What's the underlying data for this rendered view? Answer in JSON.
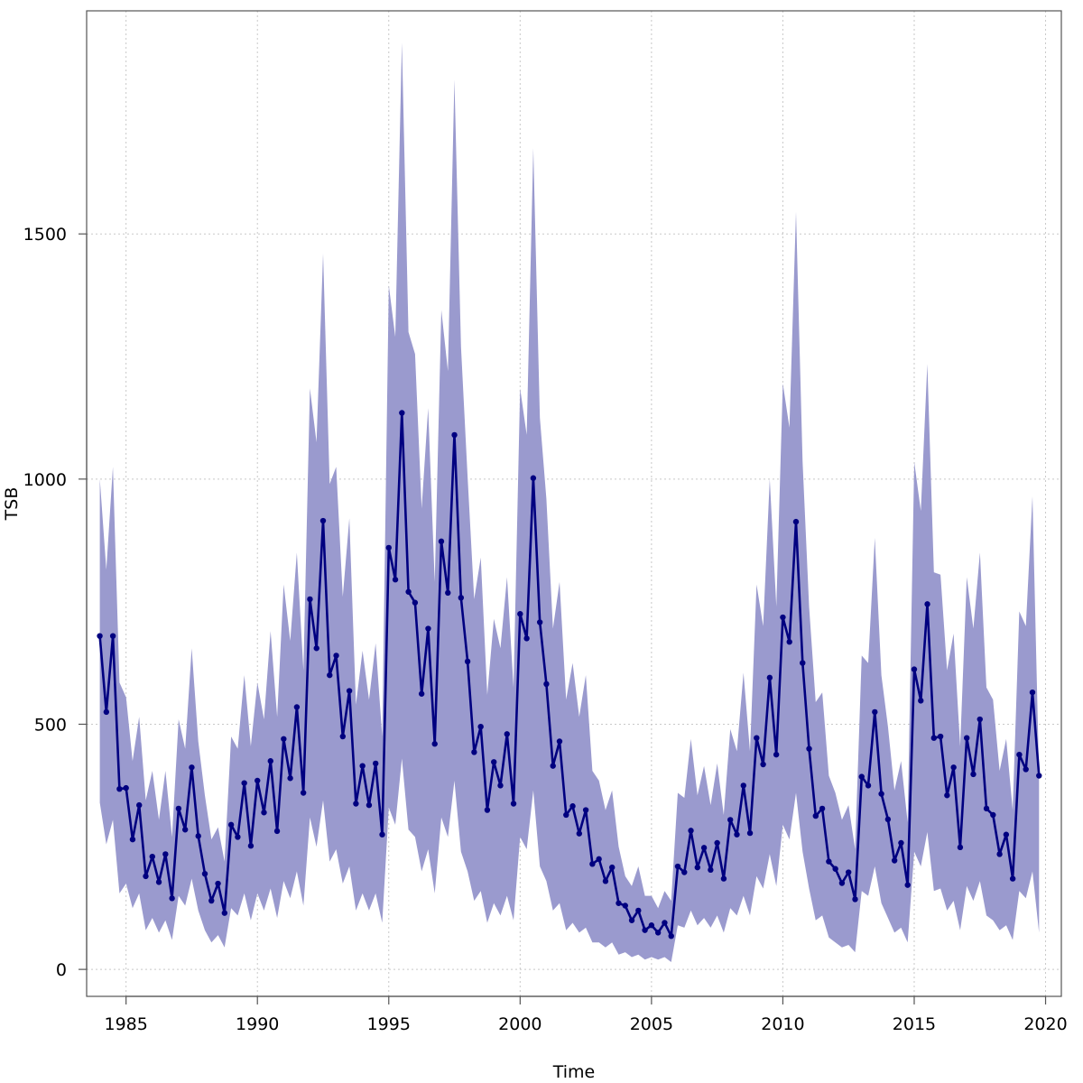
{
  "chart_data": {
    "type": "line",
    "xlabel": "Time",
    "ylabel": "TSB",
    "xlim": [
      1983.5,
      2020.6
    ],
    "ylim": [
      -55,
      1955
    ],
    "x_ticks": [
      1985,
      1990,
      1995,
      2000,
      2005,
      2010,
      2015,
      2020
    ],
    "y_ticks": [
      0,
      500,
      1000,
      1500
    ],
    "grid": true,
    "colors": {
      "line": "#000080",
      "band": "#9a9ace",
      "grid": "#c8c8c8"
    },
    "series": [
      {
        "x": [
          1984.0,
          1984.25,
          1984.5,
          1984.75,
          1985.0,
          1985.25,
          1985.5,
          1985.75,
          1986.0,
          1986.25,
          1986.5,
          1986.75,
          1987.0,
          1987.25,
          1987.5,
          1987.75,
          1988.0,
          1988.25,
          1988.5,
          1988.75,
          1989.0,
          1989.25,
          1989.5,
          1989.75,
          1990.0,
          1990.25,
          1990.5,
          1990.75,
          1991.0,
          1991.25,
          1991.5,
          1991.75,
          1992.0,
          1992.25,
          1992.5,
          1992.75,
          1993.0,
          1993.25,
          1993.5,
          1993.75,
          1994.0,
          1994.25,
          1994.5,
          1994.75,
          1995.0,
          1995.25,
          1995.5,
          1995.75,
          1996.0,
          1996.25,
          1996.5,
          1996.75,
          1997.0,
          1997.25,
          1997.5,
          1997.75,
          1998.0,
          1998.25,
          1998.5,
          1998.75,
          1999.0,
          1999.25,
          1999.5,
          1999.75,
          2000.0,
          2000.25,
          2000.5,
          2000.75,
          2001.0,
          2001.25,
          2001.5,
          2001.75,
          2002.0,
          2002.25,
          2002.5,
          2002.75,
          2003.0,
          2003.25,
          2003.5,
          2003.75,
          2004.0,
          2004.25,
          2004.5,
          2004.75,
          2005.0,
          2005.25,
          2005.5,
          2005.75,
          2006.0,
          2006.25,
          2006.5,
          2006.75,
          2007.0,
          2007.25,
          2007.5,
          2007.75,
          2008.0,
          2008.25,
          2008.5,
          2008.75,
          2009.0,
          2009.25,
          2009.5,
          2009.75,
          2010.0,
          2010.25,
          2010.5,
          2010.75,
          2011.0,
          2011.25,
          2011.5,
          2011.75,
          2012.0,
          2012.25,
          2012.5,
          2012.75,
          2013.0,
          2013.25,
          2013.5,
          2013.75,
          2014.0,
          2014.25,
          2014.5,
          2014.75,
          2015.0,
          2015.25,
          2015.5,
          2015.75,
          2016.0,
          2016.25,
          2016.5,
          2016.75,
          2017.0,
          2017.25,
          2017.5,
          2017.75,
          2018.0,
          2018.25,
          2018.5,
          2018.75,
          2019.0,
          2019.25,
          2019.5,
          2019.75
        ],
        "y": [
          680,
          525,
          680,
          368,
          370,
          265,
          335,
          190,
          230,
          178,
          235,
          145,
          328,
          285,
          412,
          272,
          195,
          140,
          175,
          115,
          295,
          270,
          380,
          252,
          385,
          320,
          425,
          282,
          470,
          390,
          535,
          360,
          755,
          655,
          915,
          600,
          640,
          475,
          568,
          338,
          415,
          335,
          420,
          275,
          860,
          795,
          1135,
          770,
          748,
          562,
          695,
          460,
          873,
          768,
          1090,
          758,
          628,
          443,
          495,
          325,
          423,
          375,
          480,
          338,
          725,
          675,
          1002,
          708,
          582,
          415,
          465,
          315,
          333,
          277,
          325,
          215,
          225,
          180,
          208,
          135,
          130,
          100,
          120,
          80,
          90,
          75,
          95,
          68,
          210,
          198,
          283,
          208,
          248,
          203,
          258,
          185,
          305,
          275,
          375,
          278,
          472,
          418,
          595,
          438,
          718,
          668,
          913,
          625,
          450,
          313,
          328,
          220,
          205,
          176,
          198,
          143,
          393,
          375,
          525,
          358,
          306,
          222,
          258,
          172,
          612,
          548,
          745,
          472,
          475,
          355,
          412,
          249,
          472,
          398,
          510,
          328,
          315,
          235,
          275,
          185,
          438,
          408,
          565,
          395
        ],
        "lower": [
          340,
          255,
          305,
          155,
          175,
          125,
          155,
          80,
          105,
          75,
          100,
          60,
          150,
          130,
          185,
          120,
          80,
          55,
          70,
          45,
          125,
          110,
          155,
          100,
          155,
          120,
          165,
          105,
          180,
          145,
          200,
          130,
          310,
          250,
          345,
          220,
          245,
          175,
          210,
          120,
          155,
          120,
          155,
          95,
          330,
          295,
          430,
          285,
          270,
          200,
          245,
          155,
          310,
          270,
          385,
          240,
          200,
          140,
          160,
          95,
          135,
          110,
          150,
          100,
          270,
          245,
          365,
          210,
          180,
          120,
          135,
          80,
          95,
          75,
          85,
          55,
          55,
          45,
          55,
          30,
          35,
          25,
          30,
          20,
          25,
          20,
          25,
          15,
          90,
          85,
          120,
          90,
          105,
          85,
          110,
          75,
          125,
          110,
          150,
          110,
          190,
          165,
          235,
          170,
          295,
          265,
          360,
          240,
          165,
          100,
          110,
          65,
          55,
          45,
          50,
          35,
          160,
          150,
          210,
          135,
          105,
          75,
          85,
          55,
          240,
          210,
          280,
          160,
          165,
          120,
          140,
          80,
          170,
          140,
          180,
          110,
          100,
          80,
          90,
          60,
          160,
          145,
          200,
          75
        ],
        "upper": [
          1000,
          815,
          1025,
          585,
          555,
          425,
          515,
          345,
          405,
          305,
          405,
          270,
          510,
          450,
          655,
          465,
          355,
          265,
          290,
          220,
          475,
          450,
          600,
          455,
          585,
          510,
          690,
          515,
          785,
          670,
          850,
          610,
          1185,
          1075,
          1460,
          990,
          1025,
          760,
          920,
          540,
          650,
          550,
          665,
          475,
          1395,
          1290,
          1890,
          1300,
          1255,
          940,
          1145,
          790,
          1345,
          1220,
          1815,
          1270,
          1005,
          755,
          840,
          560,
          715,
          655,
          800,
          575,
          1185,
          1090,
          1675,
          1125,
          960,
          695,
          790,
          550,
          625,
          515,
          600,
          405,
          385,
          325,
          365,
          250,
          190,
          170,
          210,
          150,
          150,
          125,
          160,
          140,
          360,
          350,
          470,
          355,
          415,
          335,
          420,
          315,
          490,
          445,
          605,
          445,
          785,
          700,
          1000,
          740,
          1195,
          1105,
          1545,
          1035,
          740,
          545,
          565,
          395,
          360,
          305,
          335,
          245,
          640,
          625,
          880,
          600,
          495,
          365,
          425,
          300,
          1035,
          935,
          1235,
          810,
          805,
          610,
          685,
          455,
          800,
          695,
          850,
          575,
          550,
          405,
          470,
          325,
          730,
          700,
          965,
          395
        ]
      }
    ]
  }
}
